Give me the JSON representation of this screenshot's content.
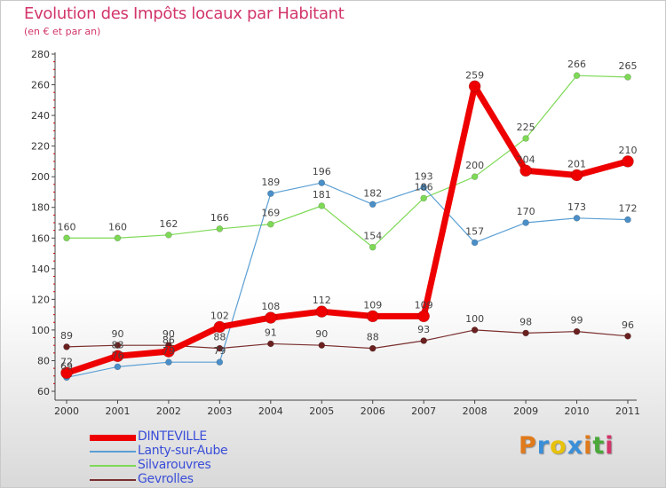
{
  "header": {
    "title": "Evolution des Impôts locaux par Habitant",
    "subtitle": "(en € et par an)"
  },
  "logo": {
    "text": "Proxiti",
    "letter_colors": [
      "#e07a1a",
      "#3a8fd8",
      "#e8c20a",
      "#3a8fd8",
      "#e07a1a",
      "#4aa83a",
      "#d2356a"
    ]
  },
  "chart_data": {
    "type": "line",
    "x": [
      "2000",
      "2001",
      "2002",
      "2003",
      "2004",
      "2005",
      "2006",
      "2007",
      "2008",
      "2009",
      "2010",
      "2011"
    ],
    "ylim": [
      60,
      280
    ],
    "yticks": [
      60,
      80,
      100,
      120,
      140,
      160,
      180,
      200,
      220,
      240,
      260,
      280
    ],
    "grid": false,
    "legend_position": "bottom-left",
    "series": [
      {
        "name": "Silvarouvres",
        "color": "#7ed957",
        "marker": "#7ed957",
        "width": 1.2,
        "radius": 3.5,
        "values": [
          160,
          160,
          162,
          166,
          169,
          181,
          154,
          186,
          200,
          225,
          266,
          265
        ],
        "labels": [
          "160",
          "160",
          "162",
          "166",
          "169",
          "181",
          "154",
          "186",
          "200",
          "225",
          "266",
          "265"
        ]
      },
      {
        "name": "Lanty-sur-Aube",
        "color": "#5a9fd4",
        "marker": "#4a8fc8",
        "width": 1.2,
        "radius": 3.5,
        "values": [
          69,
          76,
          79,
          79,
          189,
          196,
          182,
          193,
          157,
          170,
          173,
          172
        ],
        "labels": [
          "69",
          "76",
          "79",
          "79",
          "189",
          "196",
          "182",
          "193",
          "157",
          "170",
          "173",
          "172"
        ]
      },
      {
        "name": "Gevrolles",
        "color": "#7a2e2e",
        "marker": "#6b2020",
        "width": 1.2,
        "radius": 3.5,
        "values": [
          89,
          90,
          90,
          88,
          91,
          90,
          88,
          93,
          100,
          98,
          99,
          96
        ],
        "labels": [
          "89",
          "90",
          "90",
          "88",
          "91",
          "90",
          "88",
          "93",
          "100",
          "98",
          "99",
          "96"
        ]
      },
      {
        "name": "DINTEVILLE",
        "color": "#ee0000",
        "marker": "#ee0000",
        "width": 7,
        "radius": 6.5,
        "values": [
          72,
          83,
          86,
          102,
          108,
          112,
          109,
          109,
          259,
          204,
          201,
          210
        ],
        "labels": [
          "72",
          "83",
          "86",
          "102",
          "108",
          "112",
          "109",
          "109",
          "259",
          "204",
          "201",
          "210"
        ]
      }
    ],
    "legend": [
      {
        "name": "DINTEVILLE",
        "color": "#ee0000",
        "thickness": 7
      },
      {
        "name": "Lanty-sur-Aube",
        "color": "#5a9fd4",
        "thickness": 1.5
      },
      {
        "name": "Silvarouvres",
        "color": "#7ed957",
        "thickness": 1.5
      },
      {
        "name": "Gevrolles",
        "color": "#7a2e2e",
        "thickness": 1.5
      }
    ]
  }
}
